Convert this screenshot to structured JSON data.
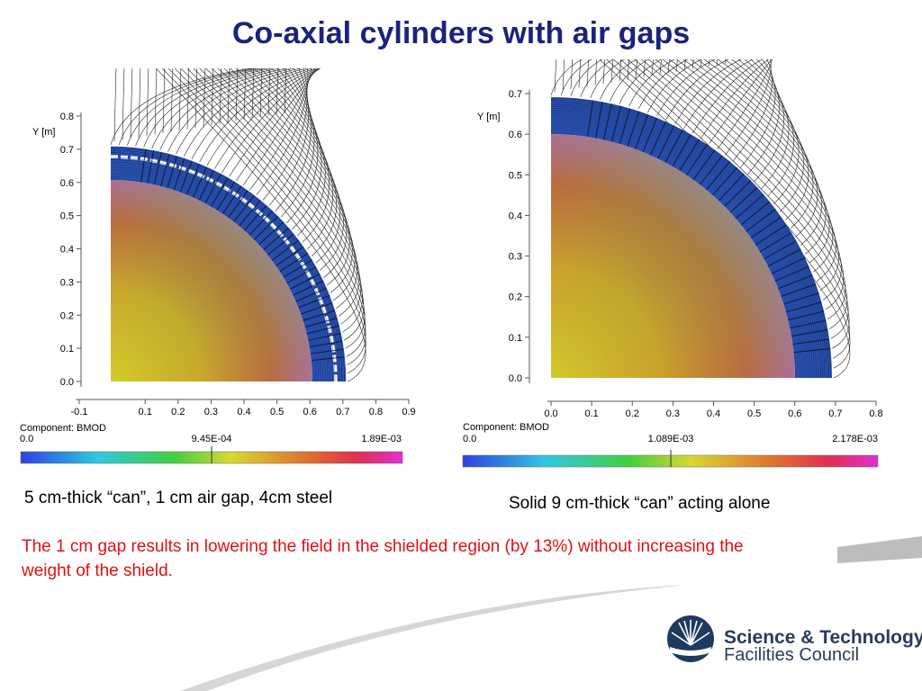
{
  "slide": {
    "title": "Co-axial cylinders with air gaps",
    "caption_left": "5 cm-thick “can”, 1 cm air gap, 4cm steel",
    "caption_right": "Solid 9 cm-thick “can” acting alone",
    "note": "The 1 cm gap results in lowering the field in the shielded region (by 13%) without increasing the weight of the shield."
  },
  "logo": {
    "line1": "Science & Technology",
    "line2": "Facilities Council",
    "color": "#2a3c5c"
  },
  "chart_data": [
    {
      "type": "heatmap",
      "y_axis_label": "Y [m]",
      "x_ticks": [
        "-0.1",
        "0.1",
        "0.2",
        "0.3",
        "0.4",
        "0.5",
        "0.6",
        "0.7",
        "0.8",
        "0.9"
      ],
      "y_ticks": [
        "0.0",
        "0.1",
        "0.2",
        "0.3",
        "0.4",
        "0.5",
        "0.6",
        "0.7",
        "0.8"
      ],
      "xlim": [
        -0.1,
        0.9
      ],
      "ylim": [
        0,
        0.8
      ],
      "inner_radius": 0.6,
      "gap": [
        0.65,
        0.66
      ],
      "outer_radius": 0.7,
      "colorbar": {
        "component": "Component: BMOD",
        "min": "0.0",
        "mid": "9.45E-04",
        "max": "1.89E-03"
      }
    },
    {
      "type": "heatmap",
      "y_axis_label": "Y [m]",
      "x_ticks": [
        "0.0",
        "0.1",
        "0.2",
        "0.3",
        "0.4",
        "0.5",
        "0.6",
        "0.7",
        "0.8"
      ],
      "y_ticks": [
        "0.0",
        "0.1",
        "0.2",
        "0.3",
        "0.4",
        "0.5",
        "0.6",
        "0.7"
      ],
      "xlim": [
        0,
        0.8
      ],
      "ylim": [
        0,
        0.7
      ],
      "inner_radius": 0.6,
      "outer_radius": 0.69,
      "colorbar": {
        "component": "Component: BMOD",
        "min": "0.0",
        "mid": "1.089E-03",
        "max": "2.178E-03"
      }
    }
  ]
}
